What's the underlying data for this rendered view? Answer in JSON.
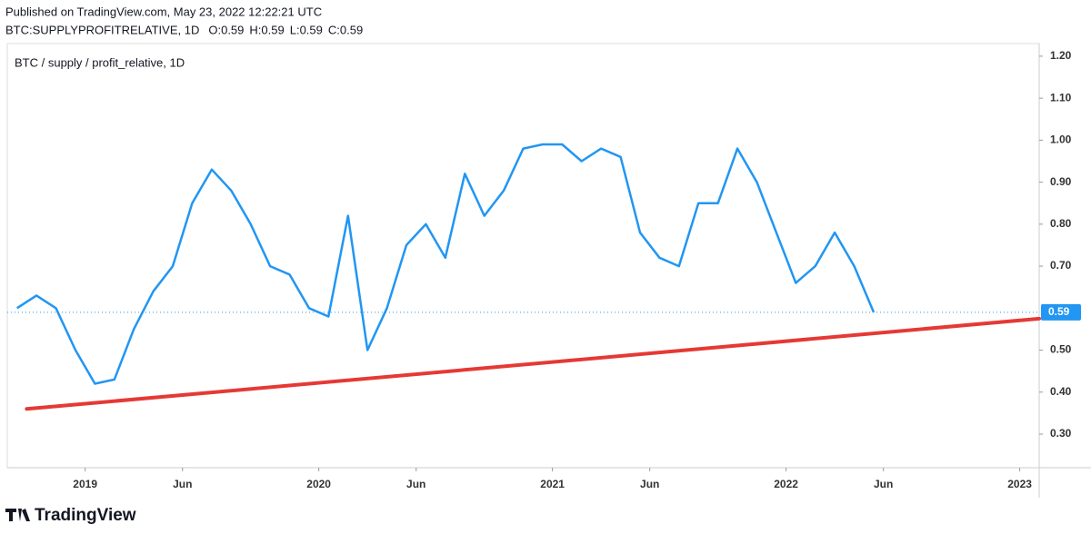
{
  "published": "Published on TradingView.com, May 23, 2022 12:22:21 UTC",
  "symbol": "BTC:SUPPLYPROFITRELATIVE, 1D",
  "ohlc": [
    {
      "label": "O:",
      "value": 0.59
    },
    {
      "label": "H:",
      "value": 0.59
    },
    {
      "label": "L:",
      "value": 0.59
    },
    {
      "label": "C:",
      "value": 0.59
    }
  ],
  "brand": "TradingView",
  "chart_data": {
    "type": "line",
    "title": "BTC / supply / profit_relative, 1D",
    "x": [
      "2018-09",
      "2018-10",
      "2018-11",
      "2018-12",
      "2019-01",
      "2019-02",
      "2019-03",
      "2019-04",
      "2019-05",
      "2019-06",
      "2019-07",
      "2019-08",
      "2019-09",
      "2019-10",
      "2019-11",
      "2019-12",
      "2020-01",
      "2020-02",
      "2020-03",
      "2020-04",
      "2020-05",
      "2020-06",
      "2020-07",
      "2020-08",
      "2020-09",
      "2020-10",
      "2020-11",
      "2020-12",
      "2021-01",
      "2021-02",
      "2021-03",
      "2021-04",
      "2021-05",
      "2021-06",
      "2021-07",
      "2021-08",
      "2021-09",
      "2021-10",
      "2021-11",
      "2021-12",
      "2022-01",
      "2022-02",
      "2022-03",
      "2022-04",
      "2022-05"
    ],
    "series": [
      {
        "color": "#2196f3",
        "values": [
          0.6,
          0.63,
          0.6,
          0.5,
          0.42,
          0.43,
          0.55,
          0.64,
          0.7,
          0.85,
          0.93,
          0.88,
          0.8,
          0.7,
          0.68,
          0.6,
          0.58,
          0.82,
          0.5,
          0.6,
          0.75,
          0.8,
          0.72,
          0.92,
          0.82,
          0.88,
          0.98,
          0.99,
          0.99,
          0.95,
          0.98,
          0.96,
          0.78,
          0.72,
          0.7,
          0.85,
          0.85,
          0.98,
          0.9,
          0.78,
          0.66,
          0.7,
          0.78,
          0.7,
          0.59
        ]
      }
    ],
    "trendline": {
      "color": "#e53935",
      "x": [
        "2018-10",
        "2023-02"
      ],
      "values": [
        0.36,
        0.575
      ]
    },
    "last_value": 0.59,
    "xlim": [
      "2018-09",
      "2023-02"
    ],
    "xticks": [
      {
        "value": "2019-01",
        "label": "2019"
      },
      {
        "value": "2019-06",
        "label": "Jun"
      },
      {
        "value": "2020-01",
        "label": "2020"
      },
      {
        "value": "2020-06",
        "label": "Jun"
      },
      {
        "value": "2021-01",
        "label": "2021"
      },
      {
        "value": "2021-06",
        "label": "Jun"
      },
      {
        "value": "2022-01",
        "label": "2022"
      },
      {
        "value": "2022-06",
        "label": "Jun"
      },
      {
        "value": "2023-01",
        "label": "2023"
      }
    ],
    "ylim": [
      0.22,
      1.23
    ],
    "yticks": [
      {
        "value": 0.3,
        "label": "0.30"
      },
      {
        "value": 0.4,
        "label": "0.40"
      },
      {
        "value": 0.5,
        "label": "0.50"
      },
      {
        "value": 0.7,
        "label": "0.70"
      },
      {
        "value": 0.8,
        "label": "0.80"
      },
      {
        "value": 0.9,
        "label": "0.90"
      },
      {
        "value": 1.0,
        "label": "1.00"
      },
      {
        "value": 1.1,
        "label": "1.10"
      },
      {
        "value": 1.2,
        "label": "1.20"
      }
    ],
    "grid": false
  }
}
